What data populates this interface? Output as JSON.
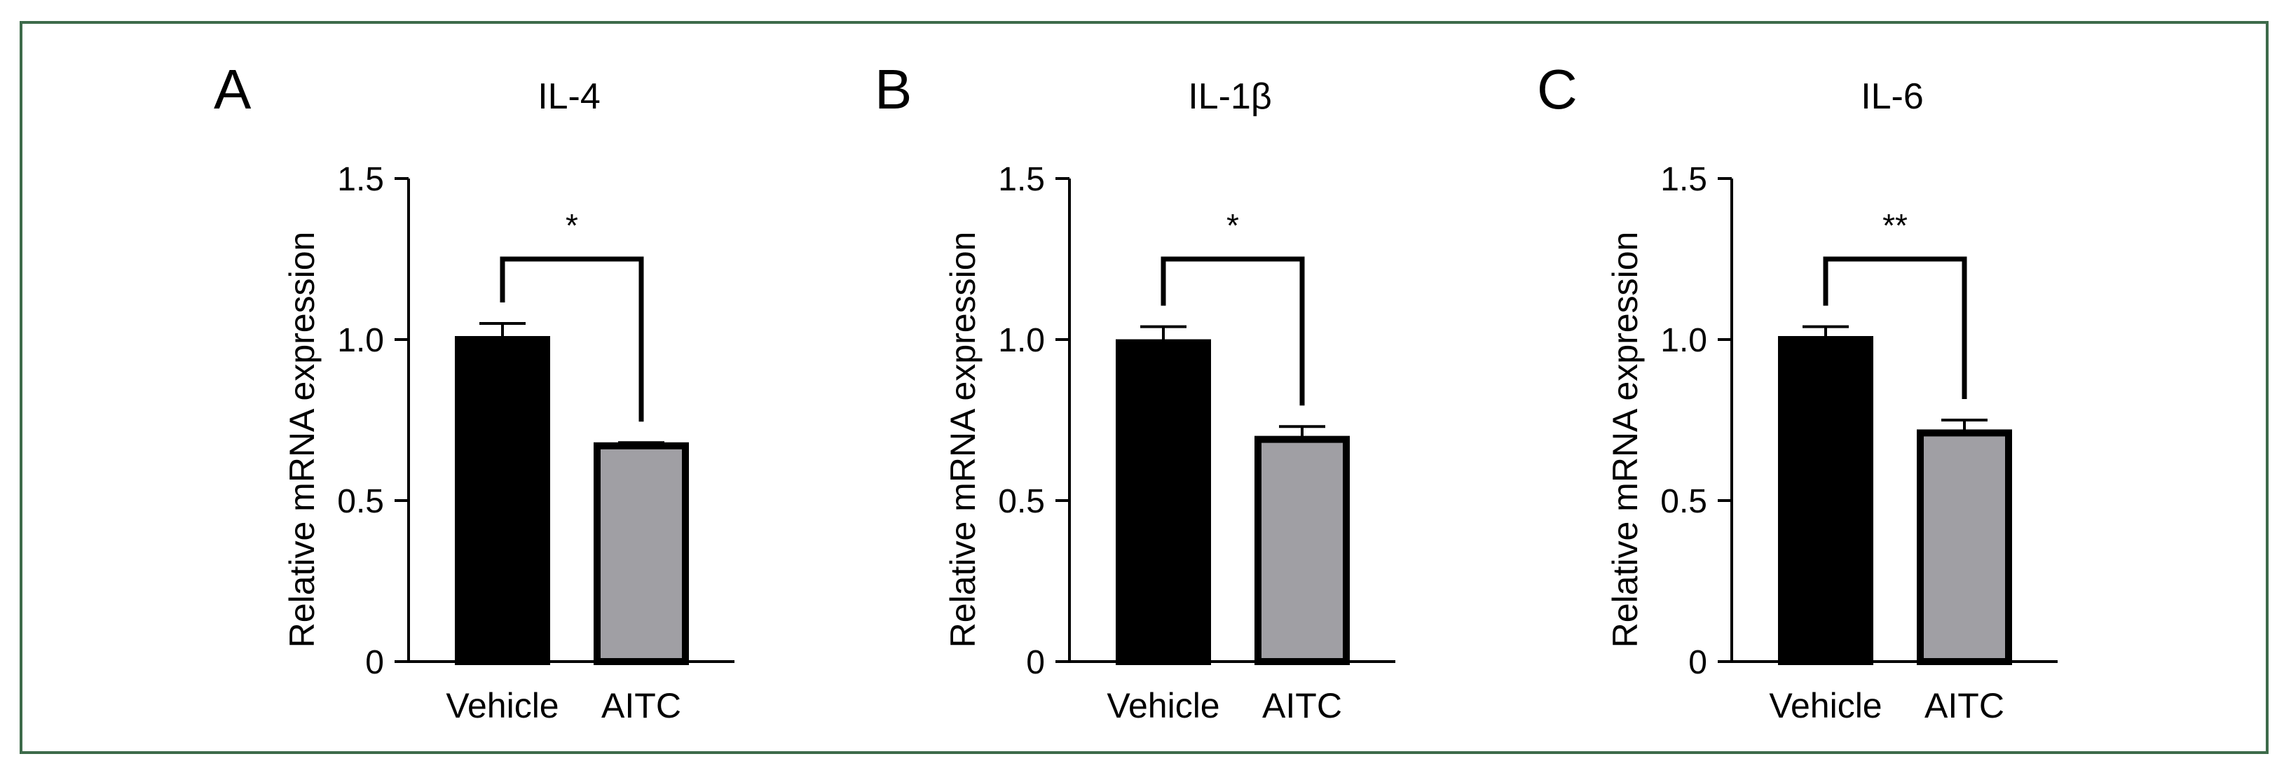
{
  "colors": {
    "frame": "#3d6b4a",
    "vehicle_bar": "#000000",
    "aitc_bar": "#a09fa4",
    "axis": "#000000"
  },
  "chart_data": [
    {
      "panel": "A",
      "type": "bar",
      "title": "IL-4",
      "ylabel": "Relative mRNA expression",
      "categories": [
        "Vehicle",
        "AITC"
      ],
      "values": [
        1.0,
        0.67
      ],
      "errors": [
        0.05,
        0.01
      ],
      "ylim": [
        0,
        1.5
      ],
      "yticks": [
        "0",
        "0.5",
        "1.0",
        "1.5"
      ],
      "significance": "*",
      "grid": false
    },
    {
      "panel": "B",
      "type": "bar",
      "title": "IL-1β",
      "ylabel": "Relative mRNA expression",
      "categories": [
        "Vehicle",
        "AITC"
      ],
      "values": [
        0.99,
        0.69
      ],
      "errors": [
        0.05,
        0.04
      ],
      "ylim": [
        0,
        1.5
      ],
      "yticks": [
        "0",
        "0.5",
        "1.0",
        "1.5"
      ],
      "significance": "*",
      "grid": false
    },
    {
      "panel": "C",
      "type": "bar",
      "title": "IL-6",
      "ylabel": "Relative mRNA expression",
      "categories": [
        "Vehicle",
        "AITC"
      ],
      "values": [
        1.0,
        0.71
      ],
      "errors": [
        0.04,
        0.04
      ],
      "ylim": [
        0,
        1.5
      ],
      "yticks": [
        "0",
        "0.5",
        "1.0",
        "1.5"
      ],
      "significance": "**",
      "grid": false
    }
  ]
}
